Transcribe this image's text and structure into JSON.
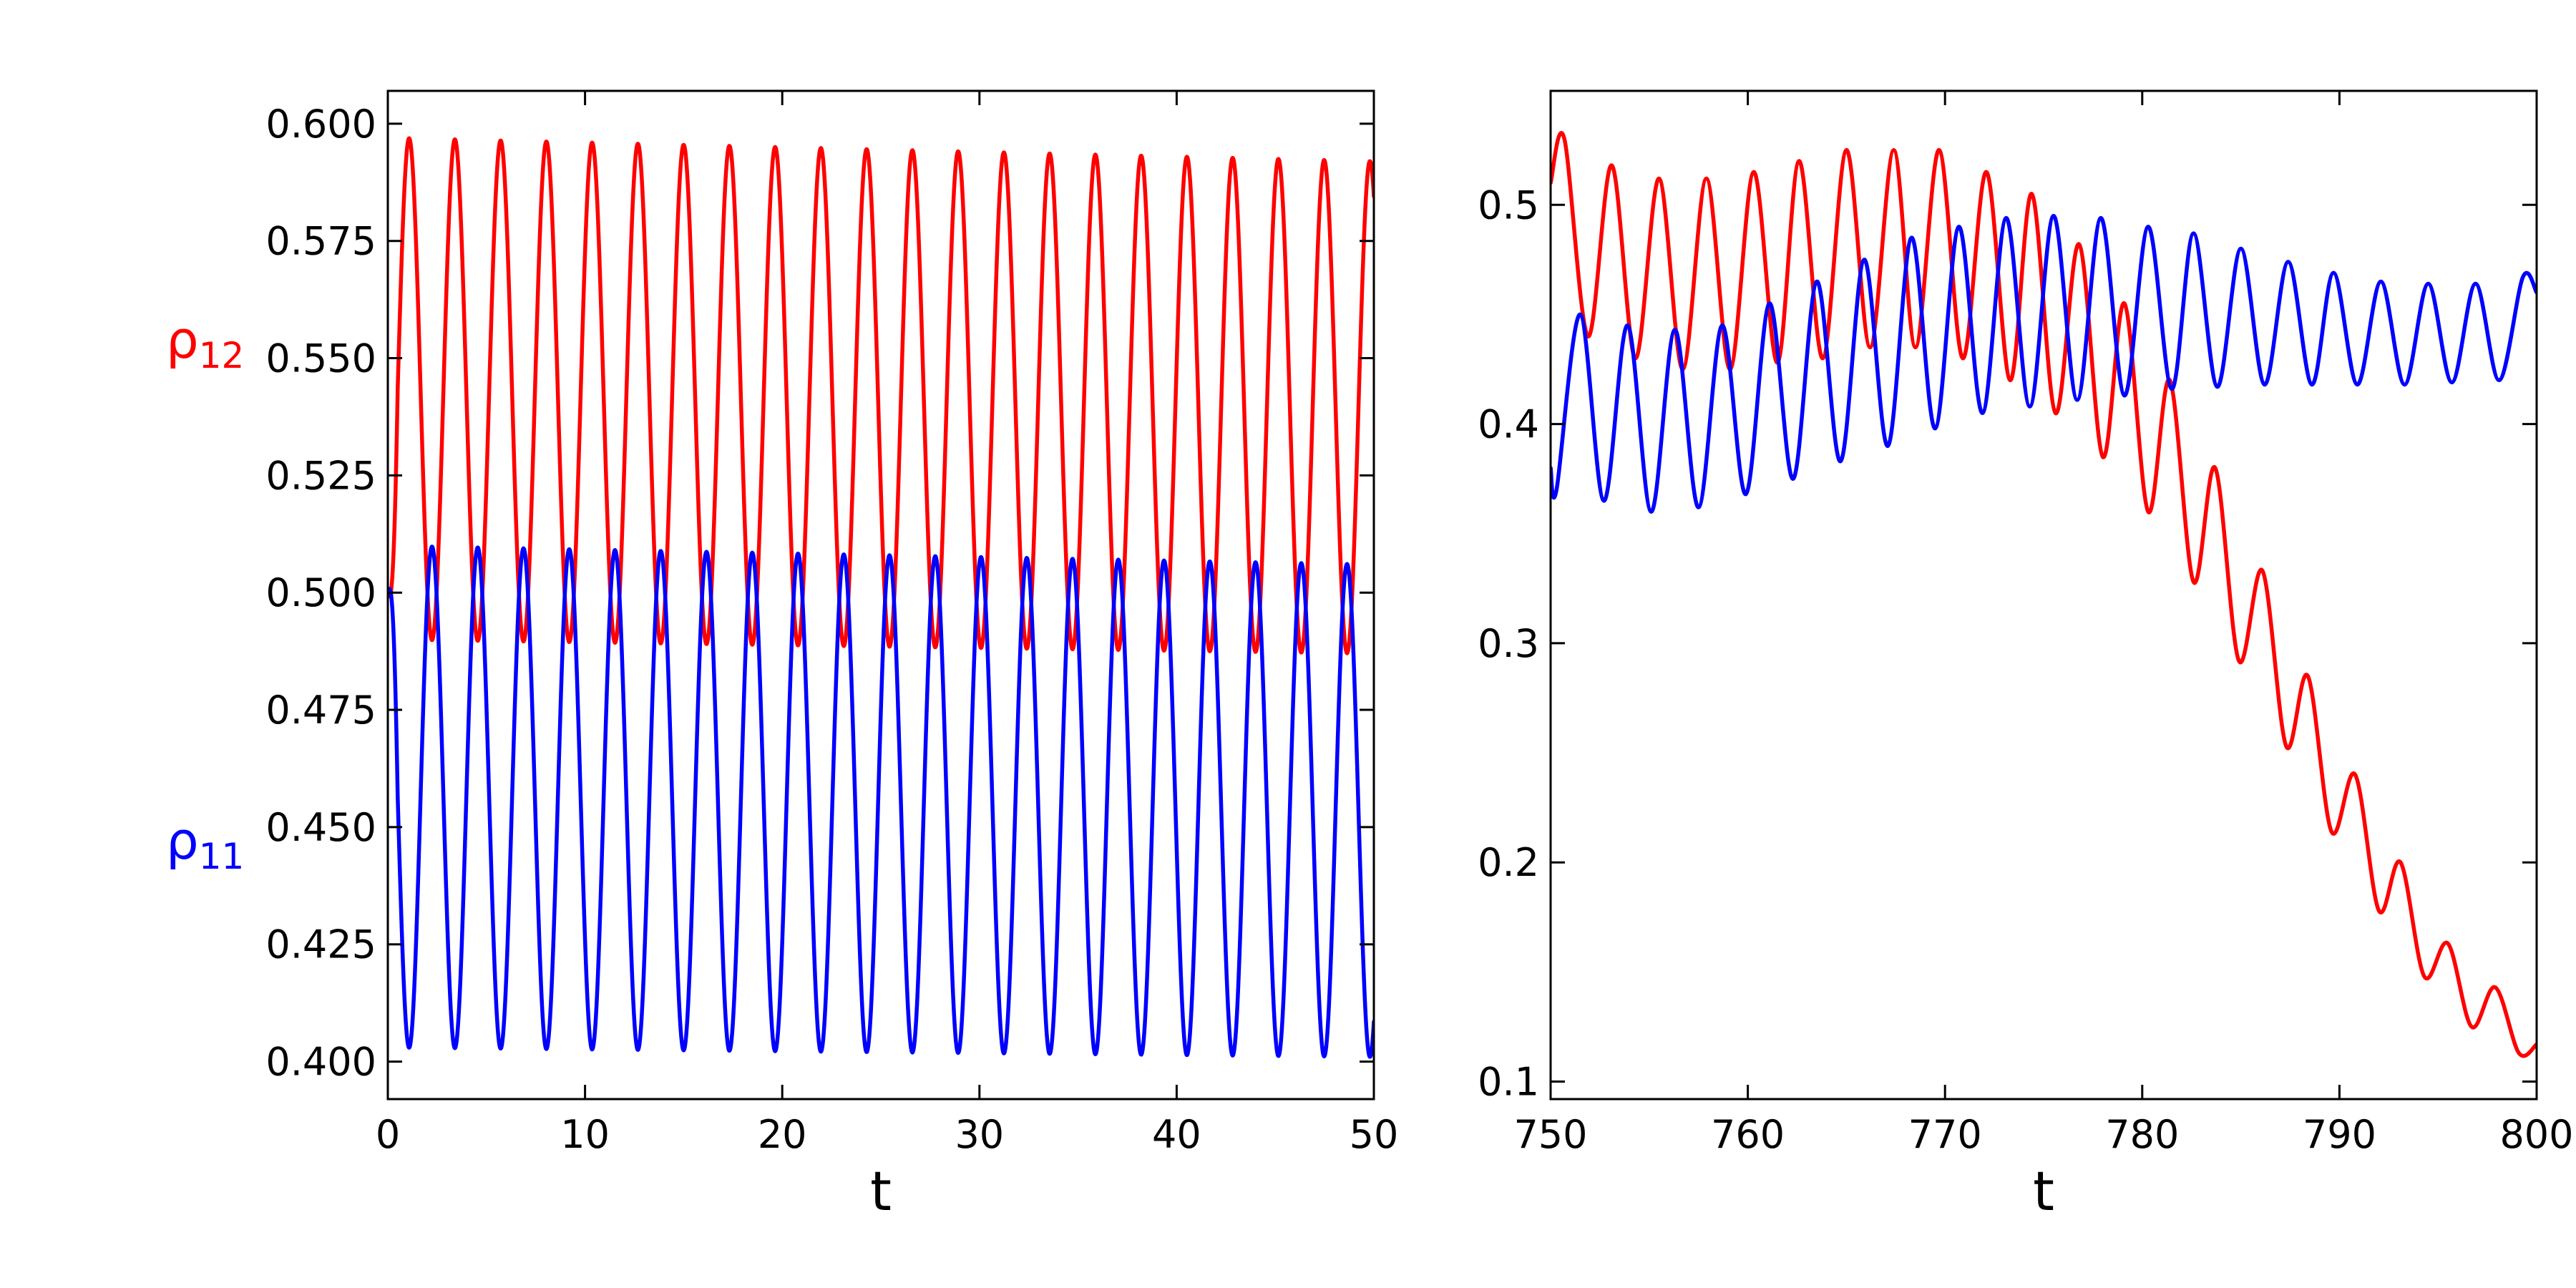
{
  "chart_data": [
    {
      "type": "line",
      "xlabel": "t",
      "ylabel": "",
      "xlim": [
        0,
        50
      ],
      "ylim": [
        0.392,
        0.607
      ],
      "xticks": [
        0,
        10,
        20,
        30,
        40,
        50
      ],
      "xtick_labels": [
        "0",
        "10",
        "20",
        "30",
        "40",
        "50"
      ],
      "yticks": [
        0.4,
        0.425,
        0.45,
        0.475,
        0.5,
        0.525,
        0.55,
        0.575,
        0.6
      ],
      "ytick_labels": [
        "0.400",
        "0.425",
        "0.450",
        "0.475",
        "0.500",
        "0.525",
        "0.550",
        "0.575",
        "0.600"
      ],
      "grid": false,
      "legend": [
        {
          "symbol": "ρ",
          "subscript": "12",
          "color": "#ff0000"
        },
        {
          "symbol": "ρ",
          "subscript": "11",
          "color": "#0000ff"
        }
      ],
      "series": [
        {
          "color": "#ff0000",
          "model": {
            "kind": "periodic_decay",
            "period": 2.32,
            "t0": 0.5,
            "start": 0.5,
            "max_start": 0.597,
            "max_end": 0.592,
            "min_start": 0.49,
            "min_end": 0.487
          }
        },
        {
          "color": "#0000ff",
          "model": {
            "kind": "periodic_decay",
            "period": 2.32,
            "t0": 0.5,
            "start": 0.5,
            "max_start": 0.51,
            "max_end": 0.506,
            "min_start": 0.403,
            "min_end": 0.401,
            "inverted": true
          }
        }
      ]
    },
    {
      "type": "line",
      "xlabel": "t",
      "ylabel": "",
      "xlim": [
        750,
        800
      ],
      "ylim": [
        0.092,
        0.552
      ],
      "xticks": [
        750,
        760,
        770,
        780,
        790,
        800
      ],
      "xtick_labels": [
        "750",
        "760",
        "770",
        "780",
        "790",
        "800"
      ],
      "yticks": [
        0.1,
        0.2,
        0.3,
        0.4,
        0.5
      ],
      "ytick_labels": [
        "0.1",
        "0.2",
        "0.3",
        "0.4",
        "0.5"
      ],
      "grid": false,
      "series": [
        {
          "color": "#ff0000",
          "points": [
            [
              750,
              0.51
            ],
            [
              750.7,
              0.53
            ],
            [
              751.9,
              0.44
            ],
            [
              753.1,
              0.518
            ],
            [
              754.3,
              0.43
            ],
            [
              755.5,
              0.512
            ],
            [
              756.7,
              0.425
            ],
            [
              757.9,
              0.512
            ],
            [
              759.1,
              0.425
            ],
            [
              760.3,
              0.515
            ],
            [
              761.5,
              0.428
            ],
            [
              762.6,
              0.52
            ],
            [
              763.8,
              0.43
            ],
            [
              765,
              0.525
            ],
            [
              766.2,
              0.435
            ],
            [
              767.4,
              0.525
            ],
            [
              768.5,
              0.435
            ],
            [
              769.7,
              0.525
            ],
            [
              770.9,
              0.43
            ],
            [
              772.1,
              0.515
            ],
            [
              773.3,
              0.42
            ],
            [
              774.4,
              0.505
            ],
            [
              775.6,
              0.405
            ],
            [
              776.8,
              0.482
            ],
            [
              778,
              0.385
            ],
            [
              779.1,
              0.455
            ],
            [
              780.3,
              0.36
            ],
            [
              781.4,
              0.42
            ],
            [
              782.6,
              0.328
            ],
            [
              783.7,
              0.38
            ],
            [
              784.9,
              0.292
            ],
            [
              786.1,
              0.333
            ],
            [
              787.3,
              0.253
            ],
            [
              788.4,
              0.285
            ],
            [
              789.6,
              0.214
            ],
            [
              790.8,
              0.24
            ],
            [
              792,
              0.178
            ],
            [
              793.1,
              0.2
            ],
            [
              794.3,
              0.148
            ],
            [
              795.5,
              0.163
            ],
            [
              796.7,
              0.125
            ],
            [
              797.9,
              0.143
            ],
            [
              799.1,
              0.113
            ],
            [
              800,
              0.117
            ]
          ]
        },
        {
          "color": "#0000ff",
          "points": [
            [
              750,
              0.38
            ],
            [
              750.3,
              0.37
            ],
            [
              751.5,
              0.45
            ],
            [
              752.7,
              0.365
            ],
            [
              753.9,
              0.445
            ],
            [
              755.1,
              0.36
            ],
            [
              756.3,
              0.443
            ],
            [
              757.5,
              0.362
            ],
            [
              758.7,
              0.445
            ],
            [
              759.9,
              0.368
            ],
            [
              761.1,
              0.455
            ],
            [
              762.3,
              0.375
            ],
            [
              763.5,
              0.465
            ],
            [
              764.7,
              0.383
            ],
            [
              765.9,
              0.475
            ],
            [
              767.1,
              0.39
            ],
            [
              768.3,
              0.485
            ],
            [
              769.5,
              0.398
            ],
            [
              770.7,
              0.49
            ],
            [
              771.9,
              0.405
            ],
            [
              773.1,
              0.494
            ],
            [
              774.3,
              0.408
            ],
            [
              775.5,
              0.495
            ],
            [
              776.7,
              0.411
            ],
            [
              777.9,
              0.494
            ],
            [
              779.1,
              0.413
            ],
            [
              780.3,
              0.49
            ],
            [
              781.5,
              0.416
            ],
            [
              782.6,
              0.487
            ],
            [
              783.8,
              0.417
            ],
            [
              785,
              0.48
            ],
            [
              786.2,
              0.418
            ],
            [
              787.4,
              0.474
            ],
            [
              788.6,
              0.418
            ],
            [
              789.7,
              0.469
            ],
            [
              790.9,
              0.418
            ],
            [
              792.1,
              0.465
            ],
            [
              793.3,
              0.418
            ],
            [
              794.5,
              0.464
            ],
            [
              795.7,
              0.419
            ],
            [
              796.9,
              0.464
            ],
            [
              798.1,
              0.42
            ],
            [
              799.3,
              0.467
            ],
            [
              800,
              0.46
            ]
          ]
        }
      ]
    }
  ]
}
